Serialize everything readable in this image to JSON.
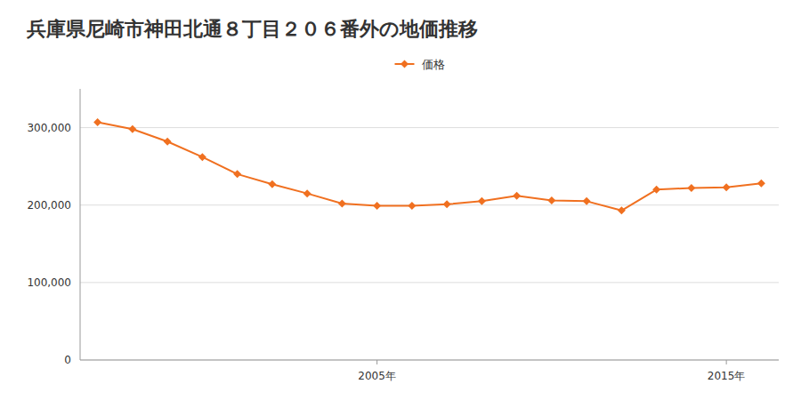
{
  "chart_data": {
    "type": "line",
    "title": "兵庫県尼崎市神田北通８丁目２０６番外の地価推移",
    "x": [
      1997,
      1998,
      1999,
      2000,
      2001,
      2002,
      2003,
      2004,
      2005,
      2006,
      2007,
      2008,
      2009,
      2010,
      2011,
      2012,
      2013,
      2014,
      2015,
      2016
    ],
    "series": [
      {
        "name": "価格",
        "color": "#f07020",
        "marker": "diamond",
        "values": [
          307000,
          298000,
          282000,
          262000,
          240000,
          227000,
          215000,
          202000,
          199000,
          199000,
          201000,
          205000,
          212000,
          206000,
          205000,
          193000,
          220000,
          222000,
          223000,
          228000
        ]
      }
    ],
    "xlim": [
      1996.5,
      2016.5
    ],
    "xticks": [
      {
        "value": 2005,
        "label": "2005年"
      },
      {
        "value": 2015,
        "label": "2015年"
      }
    ],
    "ylim": [
      0,
      350000
    ],
    "yticks": [
      0,
      {
        "value": 100000,
        "label": "100,000"
      },
      {
        "value": 200000,
        "label": "200,000"
      },
      {
        "value": 300000,
        "label": "300,000"
      }
    ],
    "grid": true,
    "legend": "top"
  }
}
